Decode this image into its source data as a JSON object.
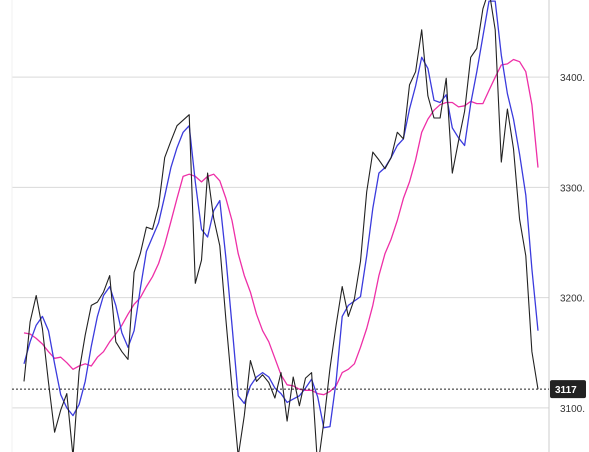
{
  "chart_data": {
    "type": "line",
    "title": "",
    "xlabel": "",
    "ylabel": "",
    "ylim": [
      3060,
      3470
    ],
    "grid": true,
    "yticks": [
      {
        "value": 3100,
        "label": "3100."
      },
      {
        "value": 3200,
        "label": "3200."
      },
      {
        "value": 3300,
        "label": "3300."
      },
      {
        "value": 3400,
        "label": "3400."
      }
    ],
    "last_price": {
      "value": 3117,
      "label": "3117"
    },
    "colors": {
      "price": "#222222",
      "ma_fast": "#3b3bdd",
      "ma_slow": "#ee2fa7",
      "grid": "#d9d9d9",
      "tag_bg": "#222222"
    },
    "series": [
      {
        "key": "price",
        "values": [
          3124,
          3178,
          3202,
          3172,
          3123,
          3078,
          3098,
          3113,
          3056,
          3133,
          3166,
          3193,
          3196,
          3205,
          3220,
          3160,
          3151,
          3144,
          3223,
          3240,
          3264,
          3262,
          3283,
          3327,
          3342,
          3356,
          3361,
          3366,
          3213,
          3234,
          3313,
          3272,
          3247,
          3180,
          3118,
          3056,
          3093,
          3143,
          3124,
          3130,
          3123,
          3109,
          3132,
          3088,
          3128,
          3102,
          3127,
          3132,
          3046,
          3087,
          3136,
          3175,
          3210,
          3183,
          3199,
          3233,
          3296,
          3332,
          3325,
          3317,
          3327,
          3350,
          3344,
          3393,
          3405,
          3443,
          3383,
          3363,
          3363,
          3399,
          3313,
          3342,
          3369,
          3418,
          3426,
          3462,
          3479,
          3443,
          3323,
          3371,
          3335,
          3271,
          3238,
          3151,
          3117
        ]
      },
      {
        "key": "ma_fast",
        "values": [
          3140,
          3160,
          3175,
          3183,
          3170,
          3140,
          3112,
          3100,
          3093,
          3103,
          3124,
          3156,
          3183,
          3202,
          3210,
          3193,
          3168,
          3155,
          3170,
          3208,
          3242,
          3255,
          3268,
          3292,
          3318,
          3336,
          3350,
          3356,
          3305,
          3262,
          3255,
          3279,
          3288,
          3236,
          3175,
          3111,
          3104,
          3120,
          3128,
          3132,
          3128,
          3118,
          3113,
          3105,
          3108,
          3111,
          3118,
          3126,
          3110,
          3082,
          3083,
          3124,
          3183,
          3193,
          3197,
          3201,
          3238,
          3281,
          3313,
          3318,
          3327,
          3338,
          3344,
          3371,
          3392,
          3418,
          3408,
          3379,
          3377,
          3384,
          3354,
          3345,
          3338,
          3376,
          3405,
          3437,
          3469,
          3469,
          3420,
          3385,
          3362,
          3330,
          3293,
          3226,
          3170
        ]
      },
      {
        "key": "ma_slow",
        "values": [
          3168,
          3167,
          3163,
          3158,
          3151,
          3145,
          3146,
          3141,
          3135,
          3138,
          3140,
          3138,
          3146,
          3151,
          3160,
          3167,
          3175,
          3185,
          3194,
          3200,
          3210,
          3219,
          3231,
          3248,
          3269,
          3290,
          3310,
          3312,
          3310,
          3305,
          3310,
          3312,
          3306,
          3290,
          3270,
          3240,
          3220,
          3205,
          3185,
          3170,
          3160,
          3145,
          3130,
          3121,
          3120,
          3117,
          3116,
          3116,
          3113,
          3112,
          3115,
          3120,
          3132,
          3135,
          3140,
          3155,
          3172,
          3193,
          3220,
          3240,
          3253,
          3270,
          3290,
          3305,
          3325,
          3350,
          3362,
          3370,
          3375,
          3377,
          3377,
          3373,
          3374,
          3378,
          3376,
          3376,
          3388,
          3400,
          3411,
          3412,
          3416,
          3414,
          3405,
          3375,
          3318
        ]
      }
    ]
  }
}
